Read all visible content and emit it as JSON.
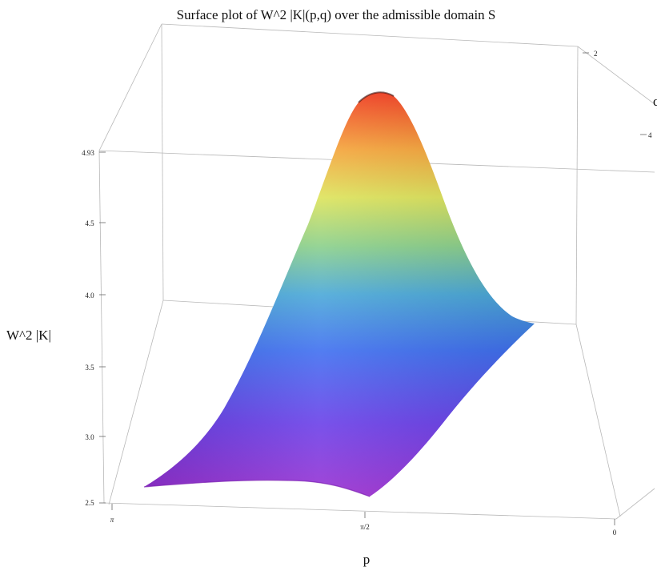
{
  "chart_data": {
    "type": "surface",
    "title": "Surface plot of  W^2 |K|(p,q) over the admissible domain S",
    "xlabel": "p",
    "ylabel": "q",
    "zlabel": "W^2 |K|",
    "zlim": [
      2.5,
      4.93
    ],
    "z_ticks": [
      "2.5",
      "3.0",
      "3.5",
      "4.0",
      "4.5",
      "4.93"
    ],
    "p_ticks": [
      "π",
      "π/2",
      "0"
    ],
    "q_ticks": [
      "2",
      "4"
    ],
    "colormap": "rainbow (purple → blue → green → yellow → red)",
    "peak": {
      "p": 1.5708,
      "z": 4.93
    },
    "corner_values": [
      {
        "label": "p = π",
        "z": 2.62
      },
      {
        "label": "p = π/2 (front)",
        "z": 2.55
      },
      {
        "label": "p = 0",
        "z": 3.85
      }
    ],
    "grid": false
  }
}
